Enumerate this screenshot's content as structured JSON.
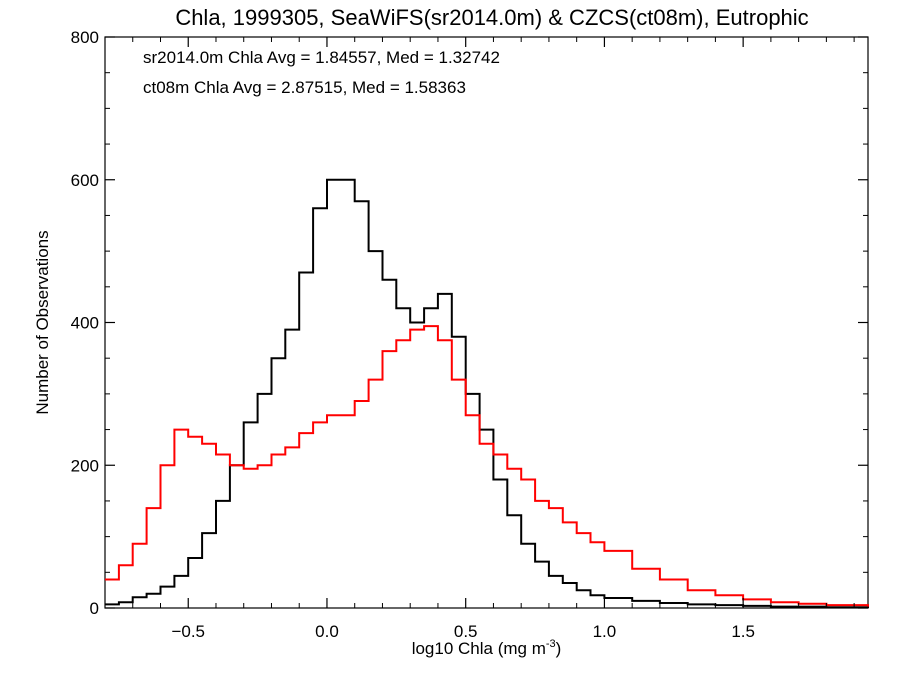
{
  "chart_data": {
    "type": "line",
    "title": "Chla, 1999305, SeaWiFS(sr2014.0m) & CZCS(ct08m), Eutrophic",
    "xlabel": "log10 Chla (mg m",
    "xlabel_sup": "-3",
    "xlabel_suffix": ")",
    "ylabel": "Number of Observations",
    "xlim": [
      -0.8,
      1.95
    ],
    "ylim": [
      0,
      800
    ],
    "xticks": [
      -0.5,
      0.0,
      0.5,
      1.0,
      1.5
    ],
    "xtick_labels": [
      "−0.5",
      "0.0",
      "0.5",
      "1.0",
      "1.5"
    ],
    "yticks": [
      0,
      200,
      400,
      600,
      800
    ],
    "ytick_labels": [
      "0",
      "200",
      "400",
      "600",
      "800"
    ],
    "grid": false,
    "annotations": [
      {
        "text": "sr2014.0m Chla Avg = 1.84557, Med = 1.32742",
        "color": "#000000"
      },
      {
        "text": "ct08m Chla Avg = 2.87515, Med = 1.58363",
        "color": "#ff0000"
      }
    ],
    "series": [
      {
        "name": "sr2014.0m",
        "color": "#000000",
        "style": "steps",
        "x": [
          -0.8,
          -0.75,
          -0.7,
          -0.65,
          -0.6,
          -0.55,
          -0.5,
          -0.45,
          -0.4,
          -0.35,
          -0.3,
          -0.25,
          -0.2,
          -0.15,
          -0.1,
          -0.05,
          0.0,
          0.05,
          0.1,
          0.15,
          0.2,
          0.25,
          0.3,
          0.35,
          0.4,
          0.45,
          0.5,
          0.55,
          0.6,
          0.65,
          0.7,
          0.75,
          0.8,
          0.85,
          0.9,
          0.95,
          1.0,
          1.1,
          1.2,
          1.3,
          1.4,
          1.5,
          1.6,
          1.7,
          1.8,
          1.95
        ],
        "y": [
          5,
          8,
          15,
          20,
          30,
          45,
          70,
          105,
          150,
          200,
          260,
          300,
          350,
          390,
          470,
          560,
          600,
          600,
          570,
          500,
          460,
          420,
          400,
          420,
          440,
          380,
          300,
          250,
          180,
          130,
          90,
          65,
          45,
          35,
          25,
          18,
          14,
          10,
          7,
          5,
          4,
          3,
          2,
          2,
          1,
          0
        ]
      },
      {
        "name": "ct08m",
        "color": "#ff0000",
        "style": "steps",
        "x": [
          -0.8,
          -0.75,
          -0.7,
          -0.65,
          -0.6,
          -0.55,
          -0.5,
          -0.45,
          -0.4,
          -0.35,
          -0.3,
          -0.25,
          -0.2,
          -0.15,
          -0.1,
          -0.05,
          0.0,
          0.05,
          0.1,
          0.15,
          0.2,
          0.25,
          0.3,
          0.35,
          0.4,
          0.45,
          0.5,
          0.55,
          0.6,
          0.65,
          0.7,
          0.75,
          0.8,
          0.85,
          0.9,
          0.95,
          1.0,
          1.1,
          1.2,
          1.3,
          1.4,
          1.5,
          1.6,
          1.7,
          1.8,
          1.95
        ],
        "y": [
          40,
          60,
          90,
          140,
          200,
          250,
          240,
          230,
          215,
          200,
          195,
          200,
          215,
          225,
          245,
          260,
          270,
          270,
          290,
          320,
          360,
          375,
          390,
          395,
          375,
          320,
          270,
          230,
          215,
          195,
          180,
          150,
          140,
          120,
          105,
          92,
          80,
          55,
          40,
          25,
          18,
          12,
          8,
          6,
          4,
          2
        ]
      }
    ]
  }
}
